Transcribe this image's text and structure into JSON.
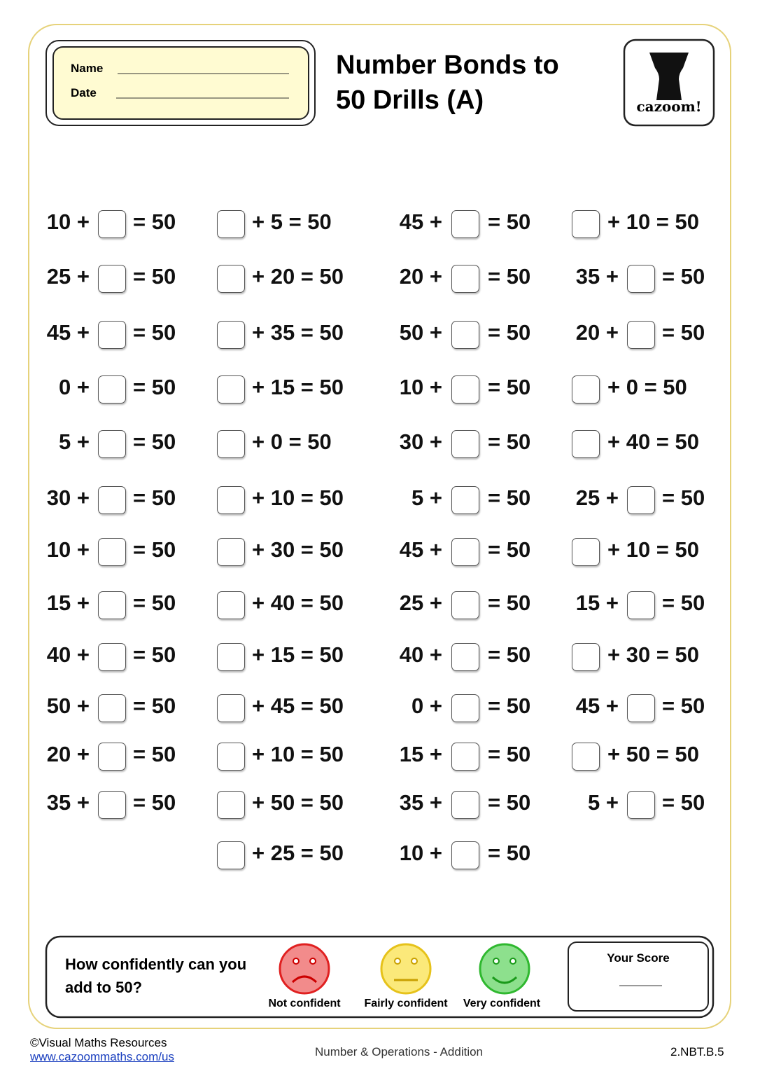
{
  "header": {
    "name_label": "Name",
    "date_label": "Date",
    "title": "Number Bonds to 50 Drills (A)",
    "logo": "cazoom!"
  },
  "columns": [
    [
      {
        "left": "10 +",
        "right": "= 50"
      },
      {
        "left": "25 +",
        "right": "= 50"
      },
      {
        "left": "45 +",
        "right": "= 50"
      },
      {
        "left": "0 +",
        "right": "= 50"
      },
      {
        "left": "5 +",
        "right": "= 50"
      },
      {
        "left": "30 +",
        "right": "= 50"
      },
      {
        "left": "10 +",
        "right": "= 50"
      },
      {
        "left": "15 +",
        "right": "= 50"
      },
      {
        "left": "40 +",
        "right": "= 50"
      },
      {
        "left": "50 +",
        "right": "= 50"
      },
      {
        "left": "20 +",
        "right": "= 50"
      },
      {
        "left": "35 +",
        "right": "= 50"
      }
    ],
    [
      {
        "right": "+ 5 = 50"
      },
      {
        "right": "+ 20 = 50"
      },
      {
        "right": "+ 35 = 50"
      },
      {
        "right": "+ 15 = 50"
      },
      {
        "right": "+ 0 = 50"
      },
      {
        "right": "+ 10 = 50"
      },
      {
        "right": "+ 30 = 50"
      },
      {
        "right": "+ 40 = 50"
      },
      {
        "right": "+ 15 = 50"
      },
      {
        "right": "+ 45 = 50"
      },
      {
        "right": "+ 10 = 50"
      },
      {
        "right": "+ 50 = 50"
      },
      {
        "right": "+ 25 = 50"
      }
    ],
    [
      {
        "left": "45 +",
        "right": "= 50"
      },
      {
        "left": "20 +",
        "right": "= 50"
      },
      {
        "left": "50 +",
        "right": "= 50"
      },
      {
        "left": "10 +",
        "right": "= 50"
      },
      {
        "left": "30 +",
        "right": "= 50"
      },
      {
        "left": "5 +",
        "right": "= 50"
      },
      {
        "left": "45 +",
        "right": "= 50"
      },
      {
        "left": "25 +",
        "right": "= 50"
      },
      {
        "left": "40 +",
        "right": "= 50"
      },
      {
        "left": "0 +",
        "right": "= 50"
      },
      {
        "left": "15 +",
        "right": "= 50"
      },
      {
        "left": "35 +",
        "right": "= 50"
      },
      {
        "left": "10 +",
        "right": "= 50"
      }
    ],
    [
      {
        "right": "+ 10 = 50"
      },
      {
        "left": "35 +",
        "right": "= 50"
      },
      {
        "left": "20 +",
        "right": "= 50"
      },
      {
        "right": "+ 0 = 50"
      },
      {
        "right": "+ 40 = 50"
      },
      {
        "left": "25 +",
        "right": "= 50"
      },
      {
        "right": "+ 10 = 50"
      },
      {
        "left": "15 +",
        "right": "= 50"
      },
      {
        "right": "+ 30 = 50"
      },
      {
        "left": "45 +",
        "right": "= 50"
      },
      {
        "right": "+ 50 = 50"
      },
      {
        "left": "5 +",
        "right": "= 50"
      }
    ]
  ],
  "confidence": {
    "question": "How confidently can you add to 50?",
    "ratings": [
      "Not confident",
      "Fairly confident",
      "Very confident"
    ],
    "score_label": "Your Score"
  },
  "footer": {
    "copyright": "©Visual Maths Resources",
    "url": "www.cazoommaths.com/us",
    "topic": "Number & Operations - Addition",
    "code": "2.NBT.B.5"
  }
}
